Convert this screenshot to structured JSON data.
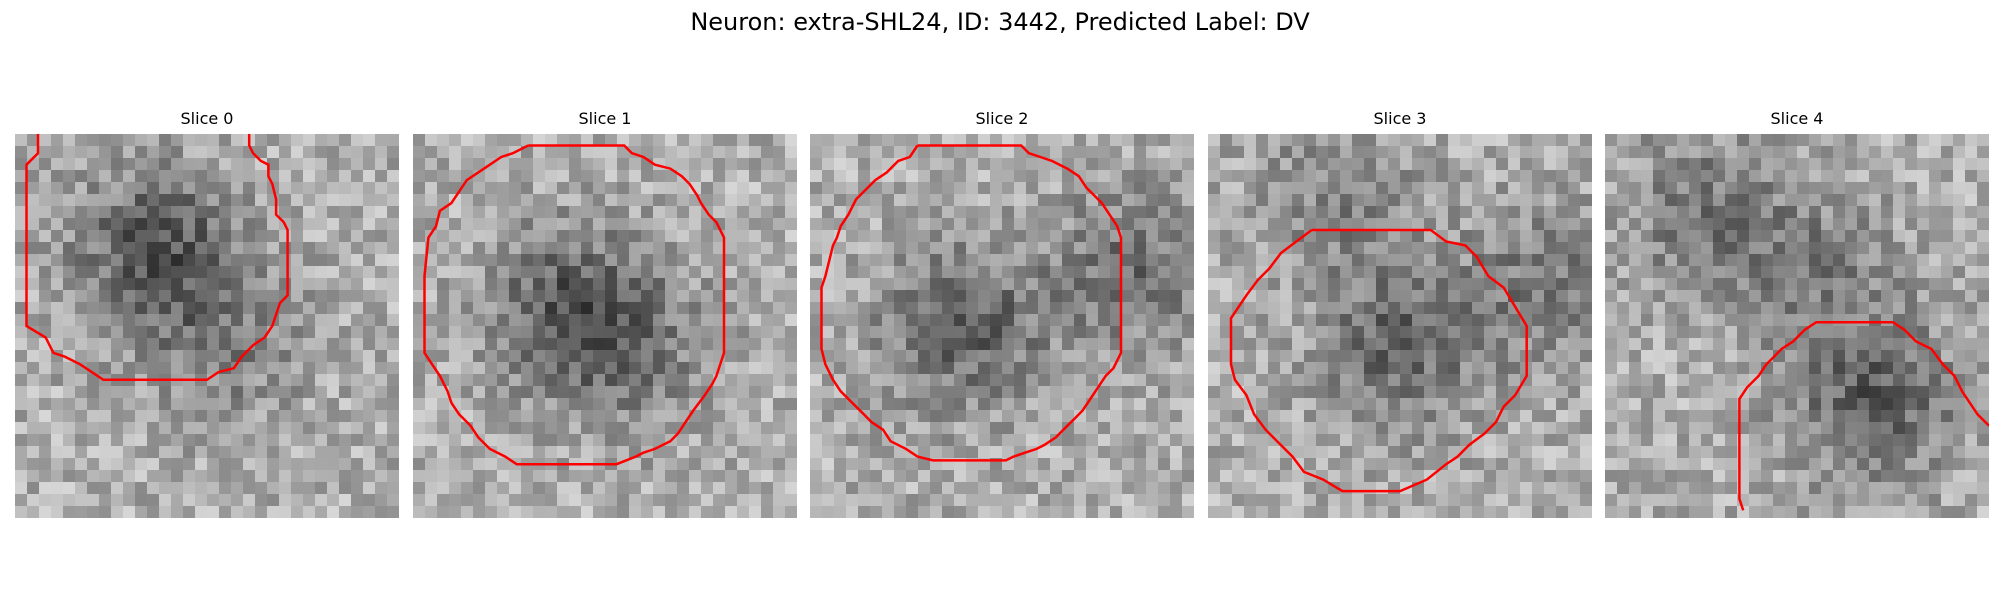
{
  "figure": {
    "title": "Neuron: extra-SHL24, ID: 3442, Predicted Label: DV",
    "contour_color": "#ff0000"
  },
  "panels": [
    {
      "title": "Slice 0",
      "dark_centers": [
        [
          0.37,
          0.3,
          1.0
        ],
        [
          0.55,
          0.55,
          0.5
        ]
      ],
      "contour_points": [
        [
          0.06,
          0.0
        ],
        [
          0.06,
          0.05
        ],
        [
          0.03,
          0.08
        ],
        [
          0.03,
          0.5
        ],
        [
          0.08,
          0.53
        ],
        [
          0.1,
          0.57
        ],
        [
          0.13,
          0.58
        ],
        [
          0.17,
          0.6
        ],
        [
          0.2,
          0.62
        ],
        [
          0.23,
          0.64
        ],
        [
          0.4,
          0.64
        ],
        [
          0.5,
          0.64
        ],
        [
          0.53,
          0.62
        ],
        [
          0.57,
          0.61
        ],
        [
          0.59,
          0.58
        ],
        [
          0.62,
          0.55
        ],
        [
          0.65,
          0.53
        ],
        [
          0.67,
          0.5
        ],
        [
          0.68,
          0.47
        ],
        [
          0.69,
          0.44
        ],
        [
          0.71,
          0.42
        ],
        [
          0.71,
          0.35
        ],
        [
          0.71,
          0.25
        ],
        [
          0.7,
          0.23
        ],
        [
          0.68,
          0.21
        ],
        [
          0.68,
          0.17
        ],
        [
          0.67,
          0.13
        ],
        [
          0.66,
          0.11
        ],
        [
          0.66,
          0.08
        ],
        [
          0.64,
          0.07
        ],
        [
          0.62,
          0.05
        ],
        [
          0.61,
          0.03
        ],
        [
          0.61,
          0.0
        ]
      ]
    },
    {
      "title": "Slice 1",
      "dark_centers": [
        [
          0.4,
          0.45,
          0.8
        ],
        [
          0.55,
          0.55,
          0.6
        ]
      ],
      "contour_points": [
        [
          0.3,
          0.03
        ],
        [
          0.55,
          0.03
        ],
        [
          0.57,
          0.05
        ],
        [
          0.6,
          0.06
        ],
        [
          0.63,
          0.08
        ],
        [
          0.67,
          0.09
        ],
        [
          0.7,
          0.11
        ],
        [
          0.72,
          0.13
        ],
        [
          0.74,
          0.16
        ],
        [
          0.75,
          0.18
        ],
        [
          0.77,
          0.21
        ],
        [
          0.79,
          0.23
        ],
        [
          0.81,
          0.27
        ],
        [
          0.81,
          0.37
        ],
        [
          0.81,
          0.5
        ],
        [
          0.81,
          0.57
        ],
        [
          0.8,
          0.6
        ],
        [
          0.79,
          0.63
        ],
        [
          0.78,
          0.65
        ],
        [
          0.76,
          0.68
        ],
        [
          0.73,
          0.72
        ],
        [
          0.71,
          0.75
        ],
        [
          0.69,
          0.78
        ],
        [
          0.67,
          0.8
        ],
        [
          0.63,
          0.82
        ],
        [
          0.6,
          0.83
        ],
        [
          0.58,
          0.84
        ],
        [
          0.53,
          0.86
        ],
        [
          0.27,
          0.86
        ],
        [
          0.24,
          0.84
        ],
        [
          0.2,
          0.82
        ],
        [
          0.17,
          0.79
        ],
        [
          0.15,
          0.76
        ],
        [
          0.12,
          0.73
        ],
        [
          0.1,
          0.7
        ],
        [
          0.09,
          0.67
        ],
        [
          0.07,
          0.63
        ],
        [
          0.05,
          0.6
        ],
        [
          0.03,
          0.57
        ],
        [
          0.03,
          0.37
        ],
        [
          0.04,
          0.27
        ],
        [
          0.06,
          0.24
        ],
        [
          0.07,
          0.2
        ],
        [
          0.1,
          0.18
        ],
        [
          0.12,
          0.15
        ],
        [
          0.14,
          0.12
        ],
        [
          0.17,
          0.1
        ],
        [
          0.2,
          0.08
        ],
        [
          0.23,
          0.06
        ],
        [
          0.26,
          0.05
        ],
        [
          0.28,
          0.04
        ]
      ]
    },
    {
      "title": "Slice 2",
      "dark_centers": [
        [
          0.4,
          0.5,
          0.9
        ],
        [
          0.85,
          0.35,
          0.7
        ]
      ],
      "contour_points": [
        [
          0.28,
          0.03
        ],
        [
          0.55,
          0.03
        ],
        [
          0.57,
          0.05
        ],
        [
          0.6,
          0.06
        ],
        [
          0.63,
          0.07
        ],
        [
          0.67,
          0.09
        ],
        [
          0.7,
          0.11
        ],
        [
          0.72,
          0.14
        ],
        [
          0.74,
          0.16
        ],
        [
          0.76,
          0.18
        ],
        [
          0.78,
          0.21
        ],
        [
          0.8,
          0.24
        ],
        [
          0.81,
          0.27
        ],
        [
          0.81,
          0.4
        ],
        [
          0.81,
          0.57
        ],
        [
          0.79,
          0.61
        ],
        [
          0.77,
          0.63
        ],
        [
          0.75,
          0.66
        ],
        [
          0.73,
          0.69
        ],
        [
          0.71,
          0.72
        ],
        [
          0.69,
          0.74
        ],
        [
          0.67,
          0.76
        ],
        [
          0.64,
          0.79
        ],
        [
          0.61,
          0.81
        ],
        [
          0.59,
          0.82
        ],
        [
          0.56,
          0.83
        ],
        [
          0.53,
          0.84
        ],
        [
          0.51,
          0.85
        ],
        [
          0.32,
          0.85
        ],
        [
          0.28,
          0.84
        ],
        [
          0.25,
          0.82
        ],
        [
          0.21,
          0.8
        ],
        [
          0.19,
          0.77
        ],
        [
          0.16,
          0.75
        ],
        [
          0.14,
          0.73
        ],
        [
          0.11,
          0.7
        ],
        [
          0.08,
          0.67
        ],
        [
          0.06,
          0.64
        ],
        [
          0.04,
          0.6
        ],
        [
          0.03,
          0.56
        ],
        [
          0.03,
          0.4
        ],
        [
          0.04,
          0.37
        ],
        [
          0.06,
          0.29
        ],
        [
          0.07,
          0.27
        ],
        [
          0.08,
          0.24
        ],
        [
          0.1,
          0.21
        ],
        [
          0.12,
          0.17
        ],
        [
          0.14,
          0.15
        ],
        [
          0.17,
          0.12
        ],
        [
          0.2,
          0.1
        ],
        [
          0.23,
          0.07
        ],
        [
          0.26,
          0.06
        ]
      ]
    },
    {
      "title": "Slice 3",
      "dark_centers": [
        [
          0.5,
          0.55,
          0.8
        ],
        [
          0.88,
          0.4,
          0.6
        ],
        [
          0.35,
          0.15,
          0.5
        ]
      ],
      "contour_points": [
        [
          0.27,
          0.25
        ],
        [
          0.58,
          0.25
        ],
        [
          0.62,
          0.28
        ],
        [
          0.67,
          0.29
        ],
        [
          0.7,
          0.32
        ],
        [
          0.73,
          0.37
        ],
        [
          0.77,
          0.4
        ],
        [
          0.8,
          0.45
        ],
        [
          0.83,
          0.5
        ],
        [
          0.83,
          0.63
        ],
        [
          0.8,
          0.68
        ],
        [
          0.77,
          0.71
        ],
        [
          0.75,
          0.75
        ],
        [
          0.72,
          0.78
        ],
        [
          0.68,
          0.81
        ],
        [
          0.65,
          0.84
        ],
        [
          0.62,
          0.86
        ],
        [
          0.57,
          0.9
        ],
        [
          0.5,
          0.93
        ],
        [
          0.4,
          0.93
        ],
        [
          0.35,
          0.93
        ],
        [
          0.3,
          0.9
        ],
        [
          0.25,
          0.88
        ],
        [
          0.22,
          0.84
        ],
        [
          0.18,
          0.8
        ],
        [
          0.15,
          0.77
        ],
        [
          0.12,
          0.73
        ],
        [
          0.1,
          0.68
        ],
        [
          0.07,
          0.64
        ],
        [
          0.06,
          0.6
        ],
        [
          0.06,
          0.48
        ],
        [
          0.1,
          0.42
        ],
        [
          0.13,
          0.38
        ],
        [
          0.16,
          0.35
        ],
        [
          0.19,
          0.31
        ],
        [
          0.23,
          0.28
        ]
      ]
    },
    {
      "title": "Slice 4",
      "dark_centers": [
        [
          0.7,
          0.7,
          0.9
        ],
        [
          0.25,
          0.2,
          0.6
        ],
        [
          0.55,
          0.35,
          0.5
        ]
      ],
      "contour_points": [
        [
          0.36,
          0.98
        ],
        [
          0.35,
          0.95
        ],
        [
          0.35,
          0.69
        ],
        [
          0.37,
          0.66
        ],
        [
          0.4,
          0.63
        ],
        [
          0.42,
          0.6
        ],
        [
          0.44,
          0.58
        ],
        [
          0.46,
          0.56
        ],
        [
          0.49,
          0.54
        ],
        [
          0.52,
          0.51
        ],
        [
          0.55,
          0.49
        ],
        [
          0.75,
          0.49
        ],
        [
          0.78,
          0.51
        ],
        [
          0.81,
          0.54
        ],
        [
          0.85,
          0.56
        ],
        [
          0.88,
          0.6
        ],
        [
          0.91,
          0.63
        ],
        [
          0.93,
          0.67
        ],
        [
          0.95,
          0.7
        ],
        [
          0.97,
          0.73
        ],
        [
          1.0,
          0.76
        ]
      ]
    }
  ]
}
